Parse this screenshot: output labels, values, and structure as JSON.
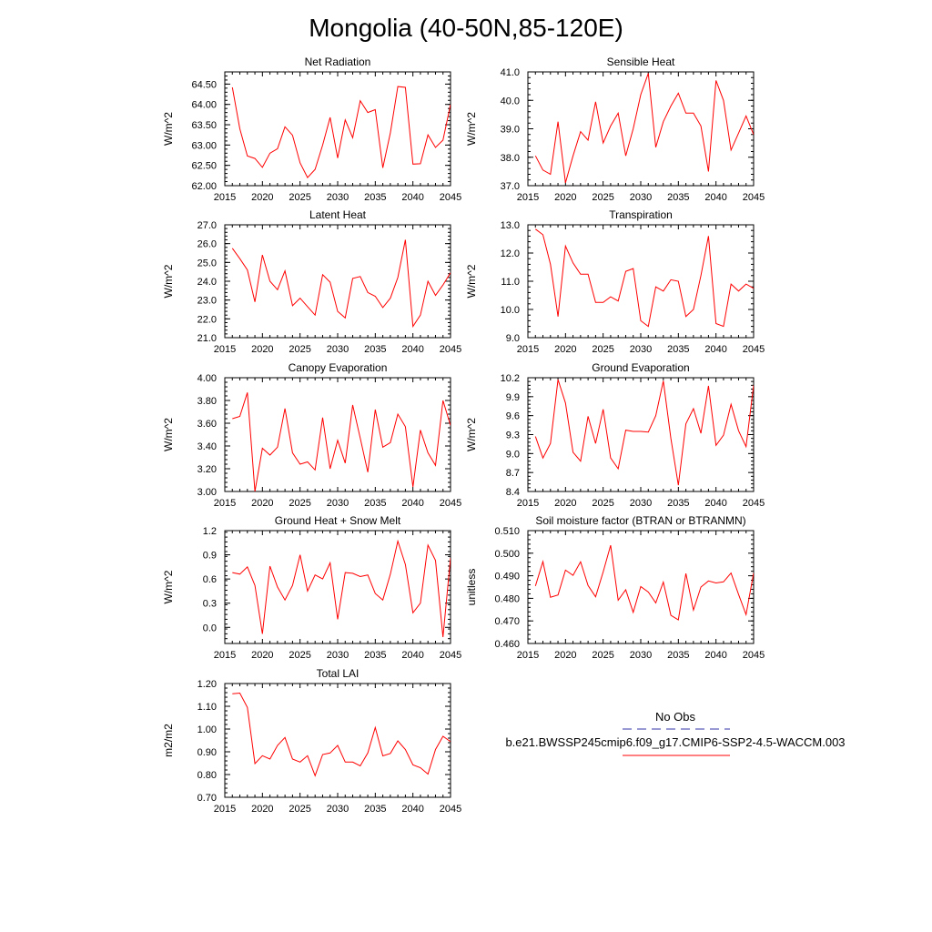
{
  "figure": {
    "title": "Mongolia (40-50N,85-120E)"
  },
  "legend": {
    "obs_label": "No Obs",
    "obs_color": "#3333aa",
    "model_label": "b.e21.BWSSP245cmip6.f09_g17.CMIP6-SSP2-4.5-WACCM.003",
    "model_color": "#ff0000"
  },
  "chart_data": [
    {
      "type": "line",
      "title": "Net Radiation",
      "ylabel": "W/m^2",
      "xlim": [
        2015,
        2045
      ],
      "ylim": [
        62.0,
        64.8
      ],
      "xticks": [
        "2015",
        "2020",
        "2025",
        "2030",
        "2035",
        "2040",
        "2045"
      ],
      "yticks": [
        "62.00",
        "62.50",
        "63.00",
        "63.50",
        "64.00",
        "64.50"
      ],
      "series": [
        {
          "color": "#ff0000",
          "x": [
            2016,
            2017,
            2018,
            2019,
            2020,
            2021,
            2022,
            2023,
            2024,
            2025,
            2026,
            2027,
            2028,
            2029,
            2030,
            2031,
            2032,
            2033,
            2034,
            2035,
            2036,
            2037,
            2038,
            2039,
            2040,
            2041,
            2042,
            2043,
            2044,
            2045
          ],
          "values": [
            64.42,
            63.4,
            62.73,
            62.67,
            62.45,
            62.8,
            62.91,
            63.45,
            63.24,
            62.56,
            62.2,
            62.4,
            63.0,
            63.68,
            62.68,
            63.62,
            63.18,
            64.09,
            63.8,
            63.87,
            62.44,
            63.3,
            64.44,
            64.42,
            62.53,
            62.54,
            63.25,
            62.94,
            63.12,
            64.0
          ]
        }
      ]
    },
    {
      "type": "line",
      "title": "Sensible Heat",
      "ylabel": "W/m^2",
      "xlim": [
        2015,
        2045
      ],
      "ylim": [
        37.0,
        41.0
      ],
      "xticks": [
        "2015",
        "2020",
        "2025",
        "2030",
        "2035",
        "2040",
        "2045"
      ],
      "yticks": [
        "37.0",
        "38.0",
        "39.0",
        "40.0",
        "41.0"
      ],
      "series": [
        {
          "color": "#ff0000",
          "x": [
            2016,
            2017,
            2018,
            2019,
            2020,
            2021,
            2022,
            2023,
            2024,
            2025,
            2026,
            2027,
            2028,
            2029,
            2030,
            2031,
            2032,
            2033,
            2034,
            2035,
            2036,
            2037,
            2038,
            2039,
            2040,
            2041,
            2042,
            2043,
            2044,
            2045
          ],
          "values": [
            38.05,
            37.55,
            37.4,
            39.25,
            37.1,
            38.05,
            38.9,
            38.6,
            39.95,
            38.5,
            39.1,
            39.55,
            38.05,
            39.0,
            40.2,
            40.95,
            38.35,
            39.25,
            39.8,
            40.25,
            39.55,
            39.55,
            39.1,
            37.5,
            40.7,
            40.0,
            38.25,
            38.85,
            39.45,
            38.8
          ]
        }
      ]
    },
    {
      "type": "line",
      "title": "Latent Heat",
      "ylabel": "W/m^2",
      "xlim": [
        2015,
        2045
      ],
      "ylim": [
        21.0,
        27.0
      ],
      "xticks": [
        "2015",
        "2020",
        "2025",
        "2030",
        "2035",
        "2040",
        "2045"
      ],
      "yticks": [
        "21.0",
        "22.0",
        "23.0",
        "24.0",
        "25.0",
        "26.0",
        "27.0"
      ],
      "series": [
        {
          "color": "#ff0000",
          "x": [
            2016,
            2017,
            2018,
            2019,
            2020,
            2021,
            2022,
            2023,
            2024,
            2025,
            2026,
            2027,
            2028,
            2029,
            2030,
            2031,
            2032,
            2033,
            2034,
            2035,
            2036,
            2037,
            2038,
            2039,
            2040,
            2041,
            2042,
            2043,
            2044,
            2045
          ],
          "values": [
            25.75,
            25.2,
            24.6,
            22.9,
            25.4,
            24.0,
            23.55,
            24.55,
            22.7,
            23.1,
            22.65,
            22.2,
            24.35,
            23.95,
            22.4,
            22.05,
            24.15,
            24.25,
            23.4,
            23.2,
            22.6,
            23.1,
            24.2,
            26.2,
            21.6,
            22.2,
            24.0,
            23.25,
            23.8,
            24.45
          ]
        }
      ]
    },
    {
      "type": "line",
      "title": "Transpiration",
      "ylabel": "W/m^2",
      "xlim": [
        2015,
        2045
      ],
      "ylim": [
        9.0,
        13.0
      ],
      "xticks": [
        "2015",
        "2020",
        "2025",
        "2030",
        "2035",
        "2040",
        "2045"
      ],
      "yticks": [
        "9.0",
        "10.0",
        "11.0",
        "12.0",
        "13.0"
      ],
      "series": [
        {
          "color": "#ff0000",
          "x": [
            2016,
            2017,
            2018,
            2019,
            2020,
            2021,
            2022,
            2023,
            2024,
            2025,
            2026,
            2027,
            2028,
            2029,
            2030,
            2031,
            2032,
            2033,
            2034,
            2035,
            2036,
            2037,
            2038,
            2039,
            2040,
            2041,
            2042,
            2043,
            2044,
            2045
          ],
          "values": [
            12.85,
            12.65,
            11.6,
            9.75,
            12.25,
            11.65,
            11.25,
            11.25,
            10.25,
            10.25,
            10.45,
            10.3,
            11.35,
            11.45,
            9.6,
            9.4,
            10.8,
            10.65,
            11.05,
            11.0,
            9.75,
            10.0,
            11.2,
            12.6,
            9.5,
            9.4,
            10.9,
            10.65,
            10.9,
            10.75
          ]
        }
      ]
    },
    {
      "type": "line",
      "title": "Canopy Evaporation",
      "ylabel": "W/m^2",
      "xlim": [
        2015,
        2045
      ],
      "ylim": [
        3.0,
        4.0
      ],
      "xticks": [
        "2015",
        "2020",
        "2025",
        "2030",
        "2035",
        "2040",
        "2045"
      ],
      "yticks": [
        "3.00",
        "3.20",
        "3.40",
        "3.60",
        "3.80",
        "4.00"
      ],
      "series": [
        {
          "color": "#ff0000",
          "x": [
            2016,
            2017,
            2018,
            2019,
            2020,
            2021,
            2022,
            2023,
            2024,
            2025,
            2026,
            2027,
            2028,
            2029,
            2030,
            2031,
            2032,
            2033,
            2034,
            2035,
            2036,
            2037,
            2038,
            2039,
            2040,
            2041,
            2042,
            2043,
            2044,
            2045
          ],
          "values": [
            3.64,
            3.66,
            3.87,
            3.0,
            3.38,
            3.32,
            3.39,
            3.73,
            3.34,
            3.24,
            3.26,
            3.19,
            3.65,
            3.2,
            3.45,
            3.25,
            3.76,
            3.47,
            3.17,
            3.72,
            3.39,
            3.43,
            3.68,
            3.57,
            3.04,
            3.54,
            3.34,
            3.23,
            3.8,
            3.58
          ]
        }
      ]
    },
    {
      "type": "line",
      "title": "Ground Evaporation",
      "ylabel": "W/m^2",
      "xlim": [
        2015,
        2045
      ],
      "ylim": [
        8.4,
        10.2
      ],
      "xticks": [
        "2015",
        "2020",
        "2025",
        "2030",
        "2035",
        "2040",
        "2045"
      ],
      "yticks": [
        "8.4",
        "8.7",
        "9.0",
        "9.3",
        "9.6",
        "9.9",
        "10.2"
      ],
      "series": [
        {
          "color": "#ff0000",
          "x": [
            2016,
            2017,
            2018,
            2019,
            2020,
            2021,
            2022,
            2023,
            2024,
            2025,
            2026,
            2027,
            2028,
            2029,
            2030,
            2031,
            2032,
            2033,
            2034,
            2035,
            2036,
            2037,
            2038,
            2039,
            2040,
            2041,
            2042,
            2043,
            2044,
            2045
          ],
          "values": [
            9.27,
            8.93,
            9.16,
            10.17,
            9.8,
            9.02,
            8.88,
            9.59,
            9.16,
            9.7,
            8.93,
            8.76,
            9.37,
            9.35,
            9.35,
            9.34,
            9.6,
            10.15,
            9.24,
            8.5,
            9.47,
            9.71,
            9.32,
            10.07,
            9.13,
            9.29,
            9.78,
            9.36,
            9.11,
            10.08
          ]
        }
      ]
    },
    {
      "type": "line",
      "title": "Ground Heat + Snow Melt",
      "ylabel": "W/m^2",
      "xlim": [
        2015,
        2045
      ],
      "ylim": [
        -0.2,
        1.2
      ],
      "xticks": [
        "2015",
        "2020",
        "2025",
        "2030",
        "2035",
        "2040",
        "2045"
      ],
      "yticks": [
        "0.0",
        "0.3",
        "0.6",
        "0.9",
        "1.2"
      ],
      "series": [
        {
          "color": "#ff0000",
          "x": [
            2016,
            2017,
            2018,
            2019,
            2020,
            2021,
            2022,
            2023,
            2024,
            2025,
            2026,
            2027,
            2028,
            2029,
            2030,
            2031,
            2032,
            2033,
            2034,
            2035,
            2036,
            2037,
            2038,
            2039,
            2040,
            2041,
            2042,
            2043,
            2044,
            2045
          ],
          "values": [
            0.68,
            0.66,
            0.75,
            0.52,
            -0.08,
            0.76,
            0.5,
            0.34,
            0.52,
            0.9,
            0.45,
            0.65,
            0.6,
            0.8,
            0.1,
            0.68,
            0.67,
            0.63,
            0.65,
            0.42,
            0.34,
            0.66,
            1.07,
            0.78,
            0.18,
            0.3,
            1.02,
            0.83,
            -0.12,
            0.86
          ]
        }
      ]
    },
    {
      "type": "line",
      "title": "Soil moisture factor (BTRAN or BTRANMN)",
      "ylabel": "unitless",
      "xlim": [
        2015,
        2045
      ],
      "ylim": [
        0.46,
        0.51
      ],
      "xticks": [
        "2015",
        "2020",
        "2025",
        "2030",
        "2035",
        "2040",
        "2045"
      ],
      "yticks": [
        "0.460",
        "0.470",
        "0.480",
        "0.490",
        "0.500",
        "0.510"
      ],
      "series": [
        {
          "color": "#ff0000",
          "x": [
            2016,
            2017,
            2018,
            2019,
            2020,
            2021,
            2022,
            2023,
            2024,
            2025,
            2026,
            2027,
            2028,
            2029,
            2030,
            2031,
            2032,
            2033,
            2034,
            2035,
            2036,
            2037,
            2038,
            2039,
            2040,
            2041,
            2042,
            2043,
            2044,
            2045
          ],
          "values": [
            0.4855,
            0.4963,
            0.4805,
            0.4815,
            0.4925,
            0.4902,
            0.4962,
            0.4857,
            0.4807,
            0.4917,
            0.5035,
            0.4792,
            0.4838,
            0.4738,
            0.4852,
            0.4828,
            0.478,
            0.4872,
            0.4725,
            0.4705,
            0.491,
            0.4748,
            0.485,
            0.4877,
            0.4868,
            0.4873,
            0.4912,
            0.4817,
            0.4728,
            0.4912
          ]
        }
      ]
    },
    {
      "type": "line",
      "title": "Total LAI",
      "ylabel": "m2/m2",
      "xlim": [
        2015,
        2045
      ],
      "ylim": [
        0.7,
        1.2
      ],
      "xticks": [
        "2015",
        "2020",
        "2025",
        "2030",
        "2035",
        "2040",
        "2045"
      ],
      "yticks": [
        "0.70",
        "0.80",
        "0.90",
        "1.00",
        "1.10",
        "1.20"
      ],
      "series": [
        {
          "color": "#ff0000",
          "x": [
            2016,
            2017,
            2018,
            2019,
            2020,
            2021,
            2022,
            2023,
            2024,
            2025,
            2026,
            2027,
            2028,
            2029,
            2030,
            2031,
            2032,
            2033,
            2034,
            2035,
            2036,
            2037,
            2038,
            2039,
            2040,
            2041,
            2042,
            2043,
            2044,
            2045
          ],
          "values": [
            1.155,
            1.158,
            1.095,
            0.848,
            0.883,
            0.868,
            0.928,
            0.963,
            0.868,
            0.855,
            0.883,
            0.795,
            0.888,
            0.895,
            0.928,
            0.855,
            0.855,
            0.838,
            0.895,
            1.007,
            0.882,
            0.893,
            0.948,
            0.91,
            0.843,
            0.83,
            0.802,
            0.91,
            0.968,
            0.945
          ]
        }
      ]
    }
  ]
}
